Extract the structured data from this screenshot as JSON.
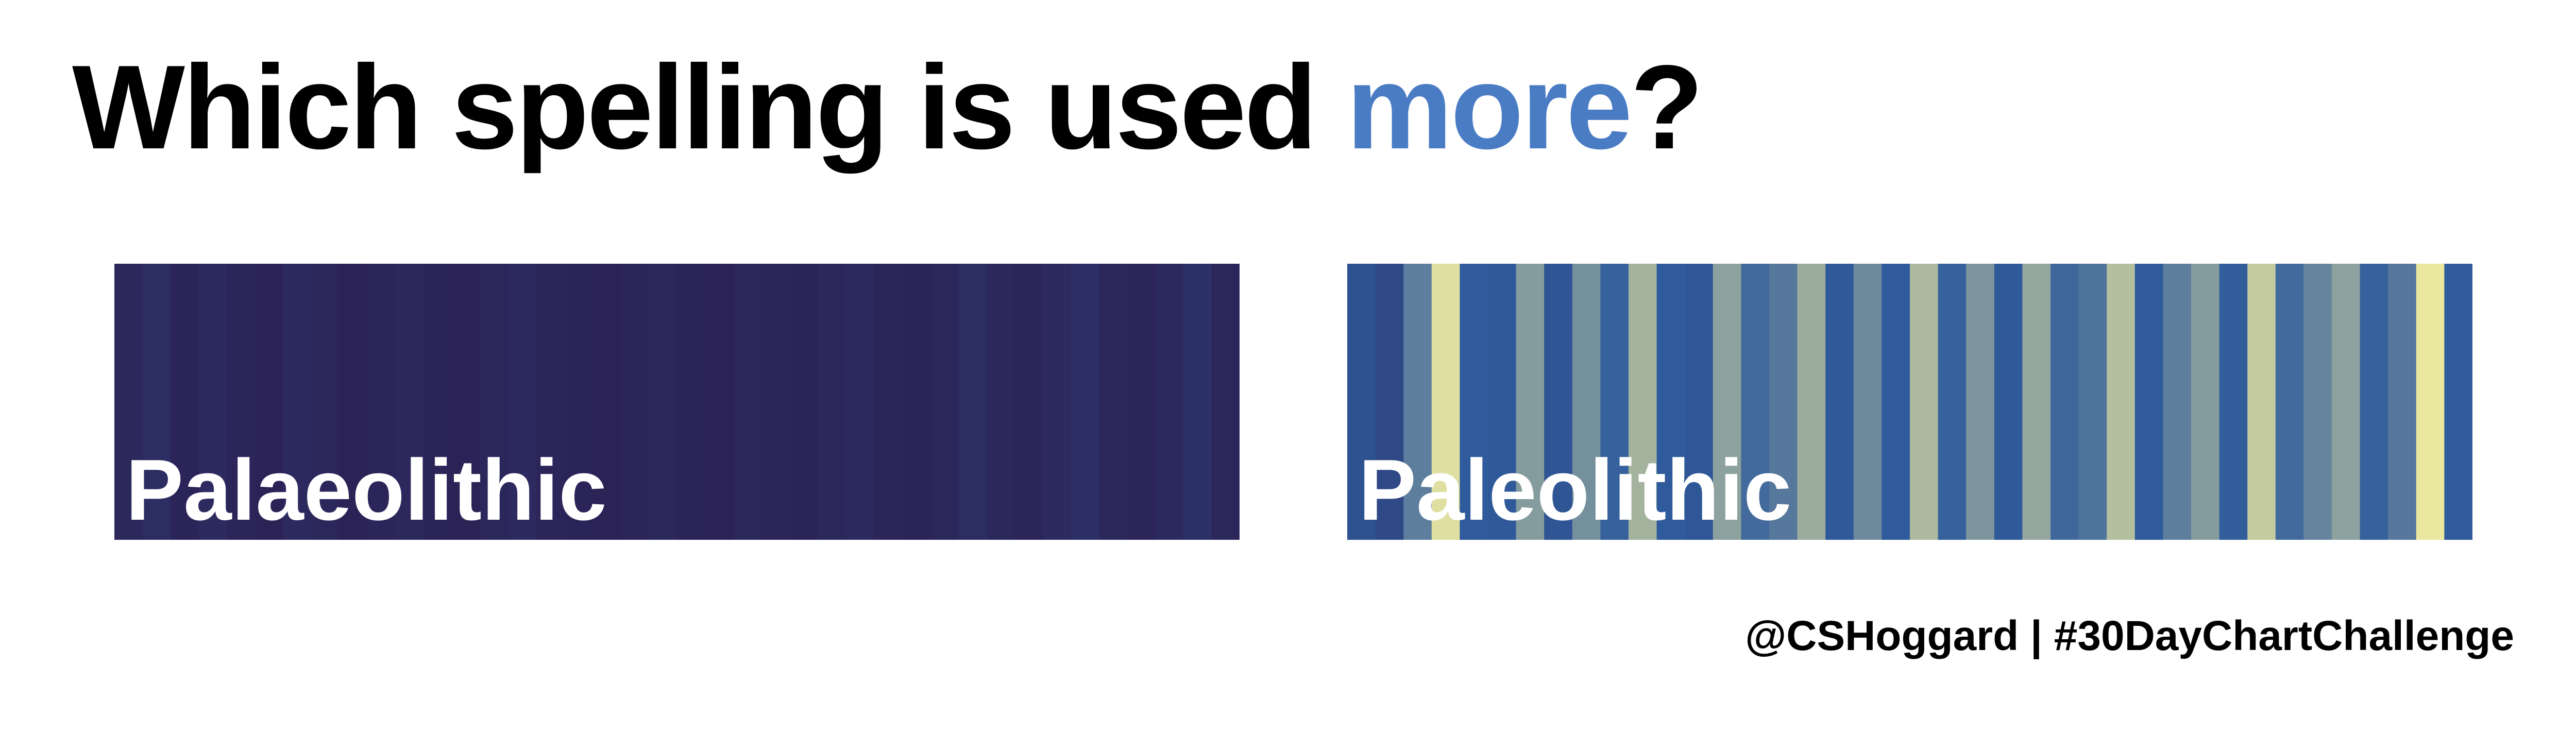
{
  "title": {
    "text_before": "Which spelling is used ",
    "highlight": "more",
    "text_after": "?",
    "highlight_color": "#4a7cc4"
  },
  "credit": "@CSHoggard | #30DayChartChallenge",
  "chart_data": [
    {
      "type": "heatmap",
      "label": "Palaeolithic",
      "stripe_count": 40,
      "relative_usage": [
        0.08,
        0.12,
        0.05,
        0.1,
        0.06,
        0.04,
        0.09,
        0.07,
        0.03,
        0.06,
        0.08,
        0.05,
        0.04,
        0.07,
        0.1,
        0.06,
        0.05,
        0.04,
        0.06,
        0.08,
        0.05,
        0.04,
        0.07,
        0.06,
        0.05,
        0.08,
        0.1,
        0.06,
        0.05,
        0.07,
        0.12,
        0.08,
        0.06,
        0.1,
        0.14,
        0.08,
        0.06,
        0.09,
        0.16,
        0.07
      ],
      "color_low": "#2b1e50",
      "color_mid": "#2f5b9c",
      "color_high": "#f2eea0"
    },
    {
      "type": "heatmap",
      "label": "Paleolithic",
      "stripe_count": 40,
      "relative_usage": [
        0.42,
        0.35,
        0.62,
        0.95,
        0.5,
        0.48,
        0.72,
        0.45,
        0.68,
        0.52,
        0.8,
        0.5,
        0.46,
        0.74,
        0.55,
        0.6,
        0.78,
        0.48,
        0.66,
        0.5,
        0.82,
        0.52,
        0.7,
        0.49,
        0.76,
        0.54,
        0.58,
        0.84,
        0.5,
        0.62,
        0.72,
        0.51,
        0.88,
        0.55,
        0.64,
        0.74,
        0.52,
        0.6,
        0.98,
        0.5
      ],
      "color_low": "#2b1e50",
      "color_mid": "#2f5b9c",
      "color_high": "#f2eea0"
    }
  ]
}
